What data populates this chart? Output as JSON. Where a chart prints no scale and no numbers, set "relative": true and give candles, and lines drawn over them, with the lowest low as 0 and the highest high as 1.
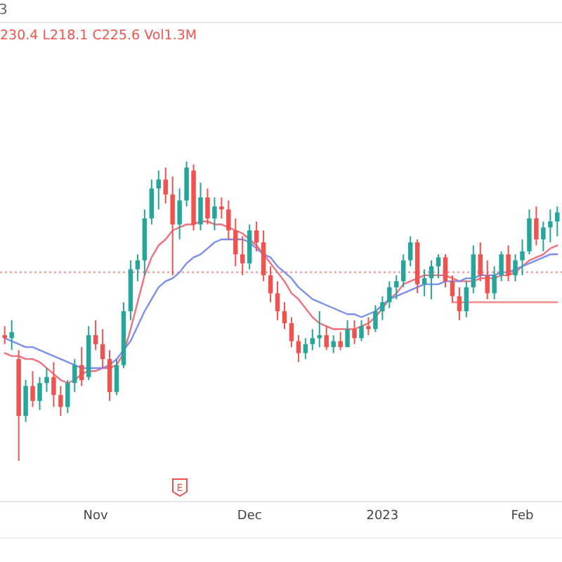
{
  "chart_data": {
    "type": "candlestick",
    "relative": true,
    "annotations": [
      "3",
      "230.4 L218.1 C225.6 Vol1.3M",
      "E"
    ],
    "categories": [
      null,
      null,
      null,
      null,
      null,
      null,
      null,
      null,
      null,
      null,
      null,
      null,
      null,
      "Nov",
      null,
      null,
      null,
      null,
      null,
      null,
      null,
      null,
      null,
      null,
      null,
      null,
      null,
      null,
      null,
      null,
      null,
      null,
      null,
      null,
      null,
      "Dec",
      null,
      null,
      null,
      null,
      null,
      null,
      null,
      null,
      null,
      null,
      null,
      null,
      null,
      null,
      null,
      null,
      null,
      null,
      "2023",
      null,
      null,
      null,
      null,
      null,
      null,
      null,
      null,
      null,
      null,
      null,
      null,
      null,
      null,
      null,
      null,
      null,
      null,
      null,
      "Feb",
      null,
      null,
      null,
      null,
      null
    ],
    "ohlc": [
      [
        0.42,
        0.45,
        0.39,
        0.41
      ],
      [
        0.41,
        0.47,
        0.37,
        0.43
      ],
      [
        0.34,
        0.37,
        0,
        0.15
      ],
      [
        0.15,
        0.27,
        0.13,
        0.25
      ],
      [
        0.25,
        0.3,
        0.18,
        0.2
      ],
      [
        0.2,
        0.28,
        0.17,
        0.26
      ],
      [
        0.26,
        0.31,
        0.23,
        0.28
      ],
      [
        0.28,
        0.33,
        0.18,
        0.22
      ],
      [
        0.22,
        0.25,
        0.15,
        0.18
      ],
      [
        0.18,
        0.27,
        0.16,
        0.26
      ],
      [
        0.26,
        0.34,
        0.23,
        0.32
      ],
      [
        0.32,
        0.38,
        0.25,
        0.27
      ],
      [
        0.28,
        0.45,
        0.27,
        0.42
      ],
      [
        0.42,
        0.47,
        0.37,
        0.39
      ],
      [
        0.39,
        0.44,
        0.31,
        0.34
      ],
      [
        0.34,
        0.37,
        0.2,
        0.23
      ],
      [
        0.23,
        0.34,
        0.22,
        0.32
      ],
      [
        0.32,
        0.53,
        0.31,
        0.5
      ],
      [
        0.5,
        0.67,
        0.47,
        0.64
      ],
      [
        0.64,
        0.69,
        0.6,
        0.67
      ],
      [
        0.67,
        0.84,
        0.62,
        0.81
      ],
      [
        0.81,
        0.94,
        0.79,
        0.91
      ],
      [
        0.91,
        0.97,
        0.84,
        0.94
      ],
      [
        0.94,
        0.98,
        0.86,
        0.89
      ],
      [
        0.89,
        0.95,
        0.62,
        0.79
      ],
      [
        0.79,
        0.91,
        0.74,
        0.87
      ],
      [
        0.87,
        1,
        0.85,
        0.98
      ],
      [
        0.97,
        0.99,
        0.77,
        0.79
      ],
      [
        0.79,
        0.93,
        0.77,
        0.88
      ],
      [
        0.88,
        0.91,
        0.79,
        0.81
      ],
      [
        0.81,
        0.88,
        0.77,
        0.85
      ],
      [
        0.85,
        0.88,
        0.81,
        0.84
      ],
      [
        0.84,
        0.87,
        0.74,
        0.77
      ],
      [
        0.77,
        0.81,
        0.65,
        0.69
      ],
      [
        0.69,
        0.75,
        0.62,
        0.66
      ],
      [
        0.66,
        0.79,
        0.64,
        0.77
      ],
      [
        0.77,
        0.8,
        0.7,
        0.73
      ],
      [
        0.73,
        0.77,
        0.6,
        0.62
      ],
      [
        0.62,
        0.65,
        0.53,
        0.56
      ],
      [
        0.56,
        0.6,
        0.47,
        0.5
      ],
      [
        0.5,
        0.53,
        0.44,
        0.46
      ],
      [
        0.46,
        0.48,
        0.38,
        0.4
      ],
      [
        0.4,
        0.42,
        0.33,
        0.36
      ],
      [
        0.36,
        0.41,
        0.34,
        0.39
      ],
      [
        0.39,
        0.44,
        0.37,
        0.41
      ],
      [
        0.41,
        0.5,
        0.38,
        0.42
      ],
      [
        0.42,
        0.45,
        0.37,
        0.38
      ],
      [
        0.38,
        0.42,
        0.36,
        0.4
      ],
      [
        0.4,
        0.43,
        0.37,
        0.38
      ],
      [
        0.38,
        0.47,
        0.38,
        0.44
      ],
      [
        0.44,
        0.47,
        0.39,
        0.41
      ],
      [
        0.41,
        0.47,
        0.4,
        0.45
      ],
      [
        0.45,
        0.48,
        0.42,
        0.44
      ],
      [
        0.44,
        0.52,
        0.43,
        0.5
      ],
      [
        0.5,
        0.55,
        0.47,
        0.53
      ],
      [
        0.53,
        0.6,
        0.51,
        0.58
      ],
      [
        0.58,
        0.62,
        0.54,
        0.6
      ],
      [
        0.6,
        0.69,
        0.58,
        0.67
      ],
      [
        0.67,
        0.75,
        0.65,
        0.73
      ],
      [
        0.73,
        0.74,
        0.56,
        0.59
      ],
      [
        0.59,
        0.64,
        0.55,
        0.61
      ],
      [
        0.61,
        0.67,
        0.54,
        0.65
      ],
      [
        0.65,
        0.69,
        0.61,
        0.68
      ],
      [
        0.68,
        0.69,
        0.58,
        0.6
      ],
      [
        0.6,
        0.62,
        0.53,
        0.55
      ],
      [
        0.55,
        0.58,
        0.47,
        0.5
      ],
      [
        0.5,
        0.6,
        0.48,
        0.58
      ],
      [
        0.58,
        0.72,
        0.56,
        0.69
      ],
      [
        0.69,
        0.73,
        0.6,
        0.62
      ],
      [
        0.62,
        0.67,
        0.54,
        0.56
      ],
      [
        0.56,
        0.65,
        0.54,
        0.62
      ],
      [
        0.62,
        0.7,
        0.6,
        0.69
      ],
      [
        0.69,
        0.72,
        0.6,
        0.62
      ],
      [
        0.62,
        0.69,
        0.6,
        0.67
      ],
      [
        0.67,
        0.74,
        0.62,
        0.7
      ],
      [
        0.7,
        0.84,
        0.69,
        0.81
      ],
      [
        0.81,
        0.85,
        0.72,
        0.74
      ],
      [
        0.74,
        0.8,
        0.7,
        0.78
      ],
      [
        0.78,
        0.84,
        0.73,
        0.8
      ],
      [
        0.8,
        0.85,
        0.75,
        0.83
      ]
    ],
    "colors": [
      "#ef5350",
      "#26a69a",
      "#ef5350",
      "#26a69a",
      "#ef5350",
      "#26a69a",
      "#26a69a",
      "#ef5350",
      "#ef5350",
      "#26a69a",
      "#26a69a",
      "#ef5350",
      "#26a69a",
      "#ef5350",
      "#ef5350",
      "#ef5350",
      "#26a69a",
      "#26a69a",
      "#26a69a",
      "#26a69a",
      "#26a69a",
      "#26a69a",
      "#26a69a",
      "#ef5350",
      "#ef5350",
      "#26a69a",
      "#26a69a",
      "#ef5350",
      "#26a69a",
      "#ef5350",
      "#26a69a",
      "#ef5350",
      "#ef5350",
      "#ef5350",
      "#ef5350",
      "#26a69a",
      "#ef5350",
      "#ef5350",
      "#ef5350",
      "#ef5350",
      "#ef5350",
      "#ef5350",
      "#ef5350",
      "#26a69a",
      "#26a69a",
      "#26a69a",
      "#ef5350",
      "#26a69a",
      "#ef5350",
      "#26a69a",
      "#ef5350",
      "#26a69a",
      "#ef5350",
      "#26a69a",
      "#26a69a",
      "#26a69a",
      "#26a69a",
      "#26a69a",
      "#26a69a",
      "#ef5350",
      "#26a69a",
      "#26a69a",
      "#26a69a",
      "#ef5350",
      "#ef5350",
      "#ef5350",
      "#26a69a",
      "#26a69a",
      "#ef5350",
      "#ef5350",
      "#26a69a",
      "#26a69a",
      "#ef5350",
      "#26a69a",
      "#26a69a",
      "#26a69a",
      "#ef5350",
      "#26a69a",
      "#26a69a",
      "#26a69a"
    ],
    "series": [
      {
        "type": "line",
        "color": "#f0707e",
        "values": [
          0.36,
          0.35,
          0.35,
          0.34,
          0.34,
          0.33,
          0.31,
          0.29,
          0.27,
          0.26,
          0.27,
          0.29,
          0.3,
          0.3,
          0.31,
          0.31,
          0.32,
          0.36,
          0.44,
          0.53,
          0.62,
          0.68,
          0.72,
          0.74,
          0.77,
          0.78,
          0.79,
          0.79,
          0.8,
          0.8,
          0.79,
          0.79,
          0.78,
          0.77,
          0.76,
          0.74,
          0.72,
          0.69,
          0.66,
          0.63,
          0.6,
          0.56,
          0.54,
          0.51,
          0.48,
          0.46,
          0.45,
          0.44,
          0.44,
          0.44,
          0.44,
          0.45,
          0.46,
          0.48,
          0.51,
          0.54,
          0.56,
          0.59,
          0.6,
          0.61,
          0.62,
          0.62,
          0.62,
          0.62,
          0.61,
          0.6,
          0.6,
          0.6,
          0.61,
          0.61,
          0.61,
          0.62,
          0.62,
          0.63,
          0.65,
          0.67,
          0.68,
          0.69,
          0.71,
          0.72
        ]
      },
      {
        "type": "line",
        "color": "#7b8ef0",
        "values": [
          0.41,
          0.4,
          0.39,
          0.38,
          0.38,
          0.37,
          0.36,
          0.35,
          0.34,
          0.33,
          0.32,
          0.31,
          0.31,
          0.31,
          0.31,
          0.32,
          0.34,
          0.37,
          0.4,
          0.45,
          0.5,
          0.54,
          0.58,
          0.6,
          0.61,
          0.63,
          0.66,
          0.68,
          0.69,
          0.71,
          0.73,
          0.74,
          0.74,
          0.74,
          0.74,
          0.73,
          0.71,
          0.69,
          0.68,
          0.65,
          0.63,
          0.61,
          0.58,
          0.56,
          0.54,
          0.53,
          0.52,
          0.51,
          0.5,
          0.49,
          0.49,
          0.48,
          0.49,
          0.5,
          0.52,
          0.54,
          0.55,
          0.56,
          0.57,
          0.58,
          0.59,
          0.59,
          0.59,
          0.6,
          0.6,
          0.6,
          0.61,
          0.61,
          0.62,
          0.62,
          0.62,
          0.63,
          0.63,
          0.64,
          0.65,
          0.66,
          0.67,
          0.68,
          0.69,
          0.69
        ]
      },
      {
        "type": "line",
        "color": "#f28b8b",
        "values": [
          null,
          null,
          null,
          null,
          null,
          null,
          null,
          null,
          null,
          null,
          null,
          null,
          null,
          null,
          null,
          null,
          null,
          null,
          null,
          null,
          null,
          null,
          null,
          null,
          null,
          null,
          null,
          null,
          null,
          null,
          null,
          null,
          null,
          null,
          null,
          null,
          null,
          null,
          null,
          null,
          null,
          null,
          null,
          null,
          null,
          null,
          null,
          null,
          null,
          null,
          null,
          null,
          null,
          null,
          null,
          null,
          null,
          null,
          null,
          null,
          null,
          null,
          null,
          null,
          0.53,
          0.53,
          0.53,
          0.53,
          0.53,
          0.53,
          0.53,
          0.53,
          0.53,
          0.53,
          0.53,
          0.53,
          0.53,
          0.53,
          0.53,
          0.53
        ]
      }
    ],
    "ref_lines": [
      {
        "axis": "y",
        "value": 0.63,
        "color": "#f28b8b",
        "line_style": "dotted"
      }
    ]
  }
}
